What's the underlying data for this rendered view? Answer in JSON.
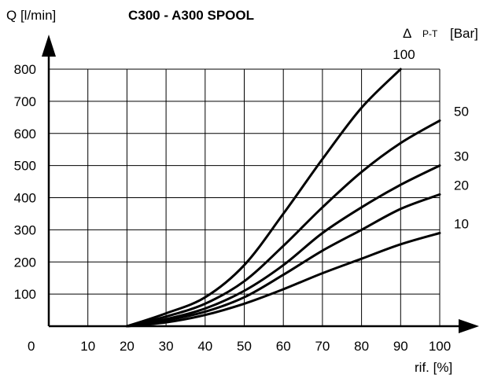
{
  "chart_data": {
    "type": "line",
    "title": "C300 - A300 SPOOL",
    "ylabel": "Q [l/min]",
    "xlabel": "rif. [%]",
    "legend_title": "Δ",
    "legend_title_sub": "P-T",
    "legend_unit": "[Bar]",
    "origin_label": "0",
    "xlim": [
      0,
      100
    ],
    "ylim": [
      0,
      800
    ],
    "x_ticks": [
      10,
      20,
      30,
      40,
      50,
      60,
      70,
      80,
      90,
      100
    ],
    "y_ticks": [
      100,
      200,
      300,
      400,
      500,
      600,
      700,
      800
    ],
    "grid": true,
    "series": [
      {
        "name": "100",
        "x": [
          20,
          30,
          40,
          50,
          60,
          70,
          80,
          90
        ],
        "y": [
          0,
          40,
          90,
          190,
          350,
          520,
          680,
          800
        ]
      },
      {
        "name": "50",
        "x": [
          20,
          30,
          40,
          50,
          60,
          70,
          80,
          90,
          100
        ],
        "y": [
          0,
          30,
          70,
          140,
          250,
          370,
          480,
          570,
          640
        ]
      },
      {
        "name": "30",
        "x": [
          20,
          30,
          40,
          50,
          60,
          70,
          80,
          90,
          100
        ],
        "y": [
          0,
          22,
          55,
          110,
          190,
          290,
          370,
          440,
          500
        ]
      },
      {
        "name": "20",
        "x": [
          20,
          30,
          40,
          50,
          60,
          70,
          80,
          90,
          100
        ],
        "y": [
          0,
          18,
          45,
          90,
          160,
          235,
          300,
          365,
          410
        ]
      },
      {
        "name": "10",
        "x": [
          20,
          30,
          40,
          50,
          60,
          70,
          80,
          90,
          100
        ],
        "y": [
          0,
          12,
          35,
          70,
          115,
          165,
          210,
          255,
          290
        ]
      }
    ]
  }
}
